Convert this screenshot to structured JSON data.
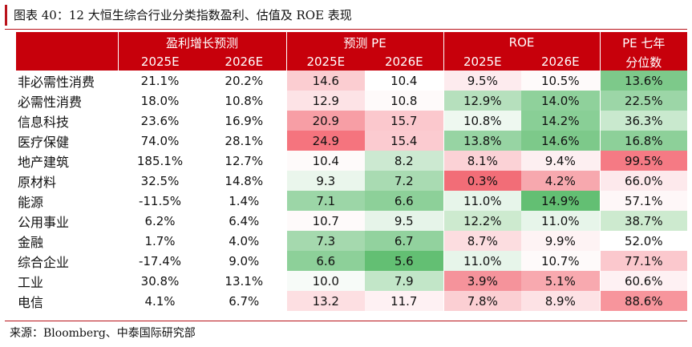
{
  "title": "图表 40：12 大恒生综合行业分类指数盈利、估值及 ROE 表现",
  "header": {
    "groups": [
      "盈利增长预测",
      "预测 PE",
      "ROE",
      "PE 七年"
    ],
    "years": [
      "2025E",
      "2026E",
      "2025E",
      "2026E",
      "2025E",
      "2026E"
    ],
    "pe_pct_sub": "分位数"
  },
  "chart_data": {
    "type": "table",
    "columns": [
      "盈利增长预测 2025E",
      "盈利增长预测 2026E",
      "预测 PE 2025E",
      "预测 PE 2026E",
      "ROE 2025E",
      "ROE 2026E",
      "PE 七年分位数"
    ],
    "rows": [
      {
        "name": "非必需性消费",
        "cells": [
          {
            "v": "21.1%",
            "c": "#ffffff"
          },
          {
            "v": "20.2%",
            "c": "#ffffff"
          },
          {
            "v": "14.6",
            "c": "#fbcdd1"
          },
          {
            "v": "10.4",
            "c": "#ffffff"
          },
          {
            "v": "9.5%",
            "c": "#fdebee"
          },
          {
            "v": "10.5%",
            "c": "#fefafa"
          },
          {
            "v": "13.6%",
            "c": "#7dc98a"
          }
        ]
      },
      {
        "name": "必需性消费",
        "cells": [
          {
            "v": "18.0%",
            "c": "#ffffff"
          },
          {
            "v": "10.8%",
            "c": "#ffffff"
          },
          {
            "v": "12.9",
            "c": "#fde3e6"
          },
          {
            "v": "10.8",
            "c": "#fefafa"
          },
          {
            "v": "12.9%",
            "c": "#b6e0bd"
          },
          {
            "v": "14.0%",
            "c": "#8fd19b"
          },
          {
            "v": "22.5%",
            "c": "#9cd6a7"
          }
        ]
      },
      {
        "name": "信息科技",
        "cells": [
          {
            "v": "23.6%",
            "c": "#ffffff"
          },
          {
            "v": "16.9%",
            "c": "#ffffff"
          },
          {
            "v": "20.9",
            "c": "#f79ea5"
          },
          {
            "v": "15.7",
            "c": "#fbc8cd"
          },
          {
            "v": "10.8%",
            "c": "#eef8f0"
          },
          {
            "v": "14.2%",
            "c": "#89cf96"
          },
          {
            "v": "36.3%",
            "c": "#c9e9ce"
          }
        ]
      },
      {
        "name": "医疗保健",
        "cells": [
          {
            "v": "74.0%",
            "c": "#ffffff"
          },
          {
            "v": "28.1%",
            "c": "#ffffff"
          },
          {
            "v": "24.9",
            "c": "#f5747e"
          },
          {
            "v": "15.4",
            "c": "#fbcbd0"
          },
          {
            "v": "13.8%",
            "c": "#97d4a3"
          },
          {
            "v": "14.6%",
            "c": "#7dc98a"
          },
          {
            "v": "16.8%",
            "c": "#8dd099"
          }
        ]
      },
      {
        "name": "地产建筑",
        "cells": [
          {
            "v": "185.1%",
            "c": "#ffffff"
          },
          {
            "v": "12.7%",
            "c": "#ffffff"
          },
          {
            "v": "10.4",
            "c": "#fefafa"
          },
          {
            "v": "8.2",
            "c": "#cce9d1"
          },
          {
            "v": "8.1%",
            "c": "#fbd2d6"
          },
          {
            "v": "9.4%",
            "c": "#fdeff1"
          },
          {
            "v": "99.5%",
            "c": "#f57a84"
          }
        ]
      },
      {
        "name": "原材料",
        "cells": [
          {
            "v": "32.5%",
            "c": "#ffffff"
          },
          {
            "v": "14.8%",
            "c": "#ffffff"
          },
          {
            "v": "9.3",
            "c": "#eaf6ec"
          },
          {
            "v": "7.2",
            "c": "#a9dbb2"
          },
          {
            "v": "0.3%",
            "c": "#f26d77"
          },
          {
            "v": "4.2%",
            "c": "#f7a8ae"
          },
          {
            "v": "66.0%",
            "c": "#fde9ec"
          }
        ]
      },
      {
        "name": "能源",
        "cells": [
          {
            "v": "-11.5%",
            "c": "#ffffff"
          },
          {
            "v": "1.4%",
            "c": "#ffffff"
          },
          {
            "v": "7.1",
            "c": "#9cd6a7"
          },
          {
            "v": "6.6",
            "c": "#8dd099"
          },
          {
            "v": "11.0%",
            "c": "#e7f5ea"
          },
          {
            "v": "14.9%",
            "c": "#63bf73"
          },
          {
            "v": "57.1%",
            "c": "#fef7f8"
          }
        ]
      },
      {
        "name": "公用事业",
        "cells": [
          {
            "v": "6.2%",
            "c": "#ffffff"
          },
          {
            "v": "6.4%",
            "c": "#ffffff"
          },
          {
            "v": "10.7",
            "c": "#fefafa"
          },
          {
            "v": "9.5",
            "c": "#e6f4e9"
          },
          {
            "v": "12.2%",
            "c": "#cdeacf"
          },
          {
            "v": "11.0%",
            "c": "#e7f5ea"
          },
          {
            "v": "38.7%",
            "c": "#cdeacf"
          }
        ]
      },
      {
        "name": "金融",
        "cells": [
          {
            "v": "1.7%",
            "c": "#ffffff"
          },
          {
            "v": "4.0%",
            "c": "#ffffff"
          },
          {
            "v": "7.3",
            "c": "#a5d9ae"
          },
          {
            "v": "6.7",
            "c": "#92d29e"
          },
          {
            "v": "8.7%",
            "c": "#fcdde0"
          },
          {
            "v": "9.9%",
            "c": "#fef3f4"
          },
          {
            "v": "52.0%",
            "c": "#ffffff"
          }
        ]
      },
      {
        "name": "综合企业",
        "cells": [
          {
            "v": "-17.4%",
            "c": "#ffffff"
          },
          {
            "v": "9.0%",
            "c": "#ffffff"
          },
          {
            "v": "6.6",
            "c": "#8dd099"
          },
          {
            "v": "5.6",
            "c": "#63bf73"
          },
          {
            "v": "11.0%",
            "c": "#e7f5ea"
          },
          {
            "v": "10.7%",
            "c": "#fefafa"
          },
          {
            "v": "77.1%",
            "c": "#fbc8cd"
          }
        ]
      },
      {
        "name": "工业",
        "cells": [
          {
            "v": "30.8%",
            "c": "#ffffff"
          },
          {
            "v": "13.1%",
            "c": "#ffffff"
          },
          {
            "v": "10.0",
            "c": "#f7fbf8"
          },
          {
            "v": "7.9",
            "c": "#c2e6c8"
          },
          {
            "v": "3.9%",
            "c": "#f5939b"
          },
          {
            "v": "5.1%",
            "c": "#f8a9af"
          },
          {
            "v": "60.6%",
            "c": "#fef1f3"
          }
        ]
      },
      {
        "name": "电信",
        "cells": [
          {
            "v": "4.1%",
            "c": "#ffffff"
          },
          {
            "v": "6.7%",
            "c": "#ffffff"
          },
          {
            "v": "13.2",
            "c": "#fddfe2"
          },
          {
            "v": "11.7",
            "c": "#fef1f3"
          },
          {
            "v": "7.8%",
            "c": "#fbcfd3"
          },
          {
            "v": "8.9%",
            "c": "#fde2e5"
          },
          {
            "v": "88.6%",
            "c": "#f7959c"
          }
        ]
      }
    ]
  },
  "source": "来源：Bloomberg、中泰国际研究部",
  "colors": {
    "header_bg": "#c7000b",
    "accent_rule": "#b9131b"
  }
}
